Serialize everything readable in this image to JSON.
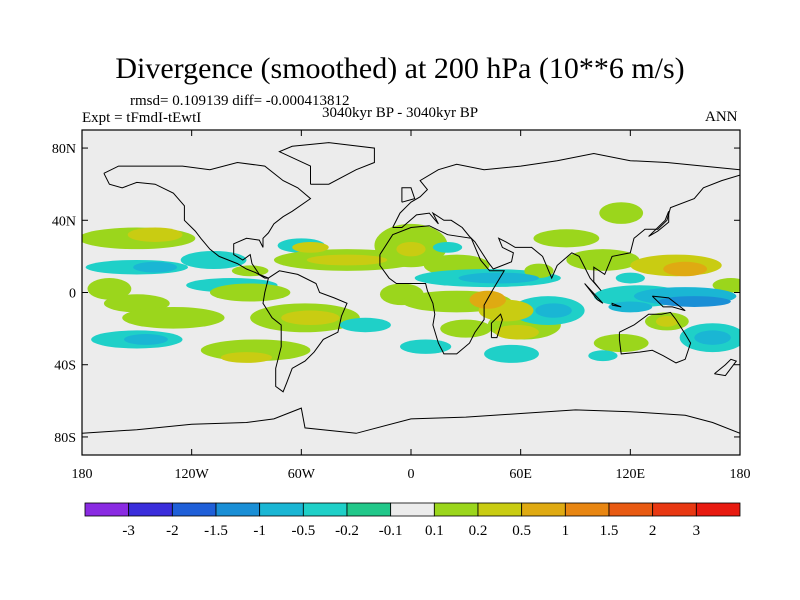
{
  "chart_data": {
    "type": "heatmap",
    "title": "Divergence (smoothed) at 200 hPa (10**6 m/s)",
    "stats_text": "rmsd= 0.109139 diff= -0.000413812",
    "experiment_label": "Expt = tFmdI-tEwtI",
    "period_label": "3040kyr BP - 3040kyr BP",
    "season_label": "ANN",
    "projection": "cylindrical equidistant",
    "lon_range": [
      -180,
      180
    ],
    "lat_range": [
      -90,
      90
    ],
    "x_ticks": [
      -180,
      -120,
      -60,
      0,
      60,
      120,
      180
    ],
    "x_tick_labels": [
      "180",
      "120W",
      "60W",
      "0",
      "60E",
      "120E",
      "180"
    ],
    "y_ticks": [
      80,
      40,
      0,
      -40,
      -80
    ],
    "y_tick_labels": [
      "80N",
      "40N",
      "0",
      "40S",
      "80S"
    ],
    "colorbar": {
      "levels": [
        -3,
        -2,
        -1.5,
        -1,
        -0.5,
        -0.2,
        -0.1,
        0.1,
        0.2,
        0.5,
        1,
        1.5,
        2,
        3
      ],
      "level_labels": [
        "-3",
        "-2",
        "-1.5",
        "-1",
        "-0.5",
        "-0.2",
        "-0.1",
        "0.1",
        "0.2",
        "0.5",
        "1",
        "1.5",
        "2",
        "3"
      ],
      "colors": [
        "#8a2be2",
        "#3a2ddb",
        "#1f5fd8",
        "#1a8fd6",
        "#1ab6d4",
        "#1fd0c8",
        "#22c88a",
        "#ececec",
        "#9bd61c",
        "#c9cc12",
        "#dfaa12",
        "#e88612",
        "#e85a12",
        "#e83812",
        "#e81a10"
      ]
    },
    "anomaly_regions": [
      {
        "lon": -165,
        "lat": 2,
        "rlon": 12,
        "rlat": 6,
        "value": 0.2
      },
      {
        "lon": -150,
        "lat": 30,
        "rlon": 32,
        "rlat": 6,
        "value": 0.2
      },
      {
        "lon": -140,
        "lat": 32,
        "rlon": 15,
        "rlat": 4,
        "value": 0.5
      },
      {
        "lon": -150,
        "lat": 14,
        "rlon": 28,
        "rlat": 4,
        "value": -0.2
      },
      {
        "lon": -140,
        "lat": 14,
        "rlon": 12,
        "rlat": 3,
        "value": -0.5
      },
      {
        "lon": -150,
        "lat": -6,
        "rlon": 18,
        "rlat": 5,
        "value": 0.2
      },
      {
        "lon": -130,
        "lat": -14,
        "rlon": 28,
        "rlat": 6,
        "value": 0.2
      },
      {
        "lon": -150,
        "lat": -26,
        "rlon": 25,
        "rlat": 5,
        "value": -0.2
      },
      {
        "lon": -145,
        "lat": -26,
        "rlon": 12,
        "rlat": 3,
        "value": -0.5
      },
      {
        "lon": -108,
        "lat": 18,
        "rlon": 18,
        "rlat": 5,
        "value": -0.2
      },
      {
        "lon": -98,
        "lat": 4,
        "rlon": 25,
        "rlat": 4,
        "value": -0.2
      },
      {
        "lon": -88,
        "lat": 12,
        "rlon": 10,
        "rlat": 3,
        "value": 0.2
      },
      {
        "lon": -88,
        "lat": 0,
        "rlon": 22,
        "rlat": 5,
        "value": 0.2
      },
      {
        "lon": -60,
        "lat": 26,
        "rlon": 13,
        "rlat": 4,
        "value": -0.2
      },
      {
        "lon": -85,
        "lat": -32,
        "rlon": 30,
        "rlat": 6,
        "value": 0.2
      },
      {
        "lon": -90,
        "lat": -36,
        "rlon": 14,
        "rlat": 3,
        "value": 0.5
      },
      {
        "lon": -55,
        "lat": 25,
        "rlon": 10,
        "rlat": 3,
        "value": 0.5
      },
      {
        "lon": -35,
        "lat": 18,
        "rlon": 40,
        "rlat": 6,
        "value": 0.2
      },
      {
        "lon": -35,
        "lat": 18,
        "rlon": 22,
        "rlat": 3,
        "value": 0.5
      },
      {
        "lon": -58,
        "lat": -14,
        "rlon": 30,
        "rlat": 8,
        "value": 0.2
      },
      {
        "lon": -55,
        "lat": -14,
        "rlon": 16,
        "rlat": 4,
        "value": 0.5
      },
      {
        "lon": -25,
        "lat": -18,
        "rlon": 14,
        "rlat": 4,
        "value": -0.2
      },
      {
        "lon": -5,
        "lat": -1,
        "rlon": 12,
        "rlat": 6,
        "value": 0.2
      },
      {
        "lon": 0,
        "lat": 26,
        "rlon": 20,
        "rlat": 12,
        "value": 0.2
      },
      {
        "lon": 0,
        "lat": 24,
        "rlon": 8,
        "rlat": 4,
        "value": 0.5
      },
      {
        "lon": 25,
        "lat": 15,
        "rlon": 18,
        "rlat": 6,
        "value": 0.2
      },
      {
        "lon": 20,
        "lat": 25,
        "rlon": 8,
        "rlat": 3,
        "value": -0.2
      },
      {
        "lon": 25,
        "lat": -5,
        "rlon": 30,
        "rlat": 6,
        "value": 0.2
      },
      {
        "lon": 42,
        "lat": 8,
        "rlon": 40,
        "rlat": 5,
        "value": -0.2
      },
      {
        "lon": 48,
        "lat": 8,
        "rlon": 22,
        "rlat": 3,
        "value": -0.5
      },
      {
        "lon": 30,
        "lat": -20,
        "rlon": 14,
        "rlat": 5,
        "value": 0.2
      },
      {
        "lon": 8,
        "lat": -30,
        "rlon": 14,
        "rlat": 4,
        "value": -0.2
      },
      {
        "lon": 52,
        "lat": -10,
        "rlon": 15,
        "rlat": 6,
        "value": 0.5
      },
      {
        "lon": 42,
        "lat": -4,
        "rlon": 10,
        "rlat": 5,
        "value": 1
      },
      {
        "lon": 62,
        "lat": -18,
        "rlon": 20,
        "rlat": 8,
        "value": 0.2
      },
      {
        "lon": 58,
        "lat": -22,
        "rlon": 12,
        "rlat": 4,
        "value": 0.5
      },
      {
        "lon": 55,
        "lat": -34,
        "rlon": 15,
        "rlat": 5,
        "value": -0.2
      },
      {
        "lon": 75,
        "lat": -10,
        "rlon": 20,
        "rlat": 8,
        "value": -0.2
      },
      {
        "lon": 78,
        "lat": -10,
        "rlon": 10,
        "rlat": 4,
        "value": -0.5
      },
      {
        "lon": 70,
        "lat": 12,
        "rlon": 8,
        "rlat": 4,
        "value": 0.2
      },
      {
        "lon": 85,
        "lat": 30,
        "rlon": 18,
        "rlat": 5,
        "value": 0.2
      },
      {
        "lon": 115,
        "lat": 44,
        "rlon": 12,
        "rlat": 6,
        "value": 0.2
      },
      {
        "lon": 105,
        "lat": 18,
        "rlon": 20,
        "rlat": 6,
        "value": 0.2
      },
      {
        "lon": 145,
        "lat": 15,
        "rlon": 25,
        "rlat": 6,
        "value": 0.5
      },
      {
        "lon": 150,
        "lat": 13,
        "rlon": 12,
        "rlat": 4,
        "value": 1
      },
      {
        "lon": 125,
        "lat": -2,
        "rlon": 25,
        "rlat": 6,
        "value": -0.2
      },
      {
        "lon": 150,
        "lat": -2,
        "rlon": 28,
        "rlat": 5,
        "value": -0.5
      },
      {
        "lon": 155,
        "lat": -5,
        "rlon": 20,
        "rlat": 3,
        "value": -1
      },
      {
        "lon": 120,
        "lat": -8,
        "rlon": 12,
        "rlat": 3,
        "value": -0.5
      },
      {
        "lon": 120,
        "lat": 8,
        "rlon": 8,
        "rlat": 3,
        "value": -0.2
      },
      {
        "lon": 140,
        "lat": -16,
        "rlon": 12,
        "rlat": 5,
        "value": 0.2
      },
      {
        "lon": 140,
        "lat": -16,
        "rlon": 6,
        "rlat": 3,
        "value": 0.5
      },
      {
        "lon": 165,
        "lat": -25,
        "rlon": 18,
        "rlat": 8,
        "value": -0.2
      },
      {
        "lon": 165,
        "lat": -25,
        "rlon": 10,
        "rlat": 4,
        "value": -0.5
      },
      {
        "lon": 115,
        "lat": -28,
        "rlon": 15,
        "rlat": 5,
        "value": 0.2
      },
      {
        "lon": 105,
        "lat": -35,
        "rlon": 8,
        "rlat": 3,
        "value": -0.2
      },
      {
        "lon": 175,
        "lat": 4,
        "rlon": 10,
        "rlat": 4,
        "value": 0.2
      }
    ]
  }
}
